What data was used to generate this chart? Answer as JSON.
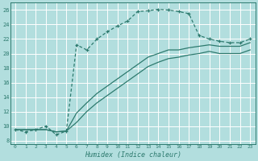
{
  "xlabel": "Humidex (Indice chaleur)",
  "bg_color": "#b2dede",
  "grid_color": "#c8e8e8",
  "line_color": "#2d7a6e",
  "xlim": [
    -0.5,
    23.5
  ],
  "ylim": [
    7.5,
    27.0
  ],
  "xticks": [
    0,
    1,
    2,
    3,
    4,
    5,
    6,
    7,
    8,
    9,
    10,
    11,
    12,
    13,
    14,
    15,
    16,
    17,
    18,
    19,
    20,
    21,
    22,
    23
  ],
  "yticks": [
    8,
    10,
    12,
    14,
    16,
    18,
    20,
    22,
    24,
    26
  ],
  "main_x": [
    0,
    1,
    2,
    3,
    4,
    5,
    6,
    7,
    8,
    9,
    10,
    11,
    12,
    13,
    14,
    15,
    16,
    17,
    18,
    19,
    20,
    21,
    22,
    23
  ],
  "main_y": [
    9.5,
    9.2,
    9.5,
    10.0,
    8.8,
    9.3,
    21.2,
    20.5,
    22.0,
    23.0,
    23.8,
    24.5,
    25.8,
    25.9,
    26.1,
    26.0,
    25.8,
    25.5,
    22.5,
    22.0,
    21.7,
    21.5,
    21.5,
    22.0
  ],
  "line2_x": [
    0,
    2,
    3,
    4,
    5,
    6,
    7,
    8,
    9,
    10,
    11,
    12,
    13,
    14,
    15,
    16,
    17,
    18,
    19,
    20,
    21,
    22,
    23
  ],
  "line2_y": [
    9.5,
    9.5,
    9.5,
    9.2,
    9.3,
    11.8,
    13.2,
    14.5,
    15.5,
    16.5,
    17.5,
    18.5,
    19.5,
    20.0,
    20.5,
    20.5,
    20.8,
    21.0,
    21.2,
    21.0,
    21.0,
    21.0,
    21.5
  ],
  "line3_x": [
    0,
    2,
    3,
    4,
    5,
    6,
    7,
    8,
    9,
    10,
    11,
    12,
    13,
    14,
    15,
    16,
    17,
    18,
    19,
    20,
    21,
    22,
    23
  ],
  "line3_y": [
    9.5,
    9.5,
    9.5,
    9.2,
    9.3,
    10.5,
    12.0,
    13.2,
    14.2,
    15.2,
    16.2,
    17.2,
    18.2,
    18.8,
    19.3,
    19.5,
    19.8,
    20.0,
    20.3,
    20.0,
    20.0,
    20.0,
    20.5
  ]
}
